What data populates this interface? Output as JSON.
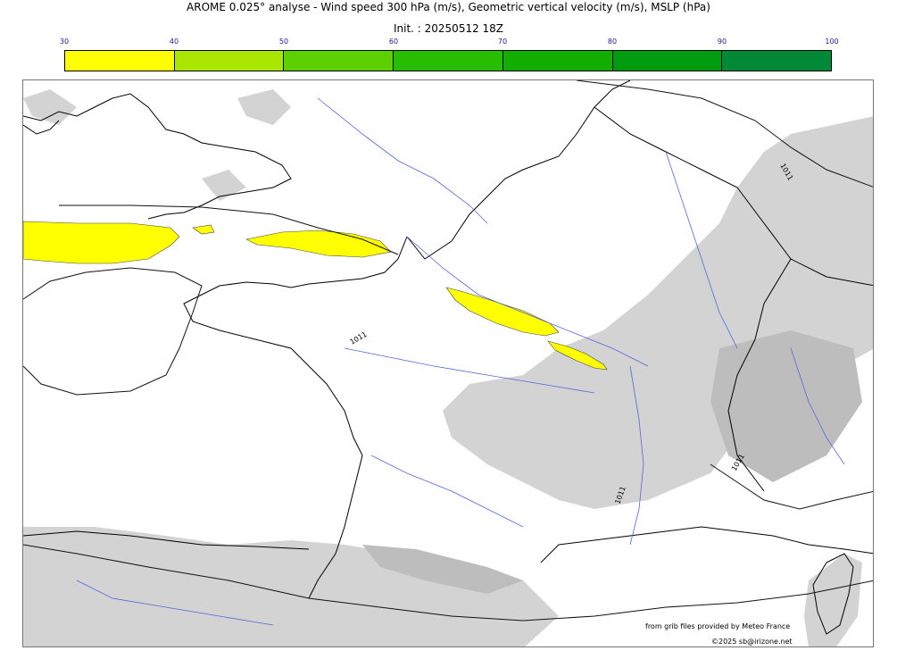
{
  "header": {
    "title": "AROME 0.025° analyse - Wind speed 300 hPa (m/s), Geometric vertical velocity (m/s), MSLP (hPa)",
    "init": "Init. : 20250512 18Z"
  },
  "colorbar": {
    "ticks": [
      "30",
      "40",
      "50",
      "60",
      "70",
      "80",
      "90",
      "100"
    ],
    "colors": [
      "#ffff00",
      "#a8e600",
      "#5cd000",
      "#28be00",
      "#12ae00",
      "#009c10",
      "#008a38",
      "#007850"
    ]
  },
  "map": {
    "isobar_labels": [
      "1011",
      "1011",
      "1011",
      "1011"
    ]
  },
  "credits": {
    "source": "from grib files provided by Meteo France",
    "copyright": "©2025 sb@irizone.net"
  }
}
